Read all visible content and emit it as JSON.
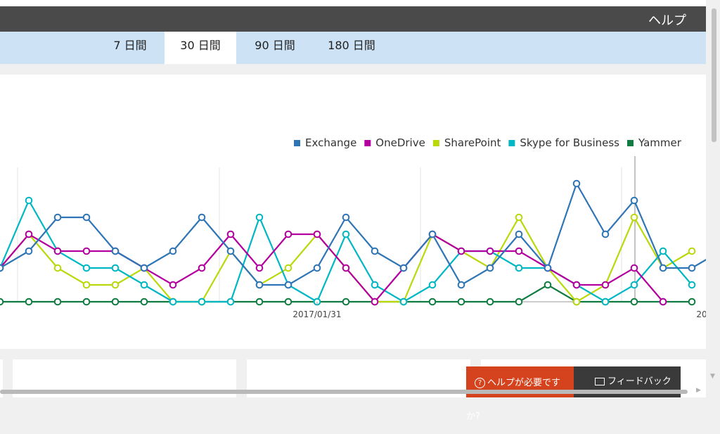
{
  "header": {
    "help_label": "ヘルプ"
  },
  "tabs": [
    {
      "label": "7 日間",
      "active": false
    },
    {
      "label": "30 日間",
      "active": true
    },
    {
      "label": "90 日間",
      "active": false
    },
    {
      "label": "180 日間",
      "active": false
    }
  ],
  "chart_data": {
    "type": "line",
    "x": [
      "2017/01/18",
      "2017/01/19",
      "2017/01/20",
      "2017/01/21",
      "2017/01/22",
      "2017/01/23",
      "2017/01/24",
      "2017/01/25",
      "2017/01/26",
      "2017/01/27",
      "2017/01/28",
      "2017/01/29",
      "2017/01/30",
      "2017/01/31",
      "2017/02/01",
      "2017/02/02",
      "2017/02/03",
      "2017/02/04",
      "2017/02/05",
      "2017/02/06",
      "2017/02/07",
      "2017/02/08",
      "2017/02/09",
      "2017/02/10",
      "2017/02/11",
      "2017/02/12",
      "2017/02/13",
      "2017/02/14",
      "2017/02/15",
      "2017/02/16",
      "2017/02/17",
      "2017/02/18",
      "2017/02/19"
    ],
    "x_tick_labels": [
      "2017/01/31",
      "2017/02/14"
    ],
    "ylim": [
      0,
      8
    ],
    "legend_position": "top-right",
    "series": [
      {
        "name": "Exchange",
        "color": "#2e75b6",
        "values": [
          0,
          1,
          2,
          3,
          5,
          5,
          3,
          2,
          3,
          5,
          3,
          1,
          1,
          2,
          5,
          3,
          2,
          4,
          1,
          2,
          4,
          2,
          7,
          4,
          6,
          2,
          2,
          3,
          3,
          null,
          null,
          null,
          null
        ]
      },
      {
        "name": "OneDrive",
        "color": "#b4009e",
        "values": [
          0,
          1,
          2,
          4,
          3,
          3,
          3,
          2,
          1,
          2,
          4,
          2,
          4,
          4,
          2,
          0,
          2,
          4,
          3,
          3,
          3,
          2,
          1,
          1,
          2,
          0,
          null,
          null,
          null,
          null,
          null,
          null,
          null
        ]
      },
      {
        "name": "SharePoint",
        "color": "#bad80a",
        "values": [
          0,
          1,
          2,
          4,
          2,
          1,
          1,
          2,
          0,
          0,
          3,
          1,
          2,
          4,
          2,
          0,
          0,
          4,
          3,
          2,
          5,
          2,
          0,
          1,
          5,
          2,
          3,
          null,
          null,
          null,
          null,
          null,
          null
        ]
      },
      {
        "name": "Skype for Business",
        "color": "#00b7c3",
        "values": [
          0,
          1,
          2,
          6,
          3,
          2,
          2,
          1,
          0,
          0,
          0,
          5,
          1,
          0,
          4,
          1,
          0,
          1,
          3,
          3,
          2,
          2,
          1,
          0,
          1,
          3,
          1,
          null,
          null,
          null,
          null,
          null,
          null
        ]
      },
      {
        "name": "Yammer",
        "color": "#107c41",
        "values": [
          0,
          0,
          0,
          0,
          0,
          0,
          0,
          0,
          0,
          0,
          0,
          0,
          0,
          0,
          0,
          0,
          0,
          0,
          0,
          0,
          0,
          1,
          0,
          0,
          0,
          0,
          0,
          null,
          null,
          null,
          null,
          null,
          null
        ]
      }
    ]
  },
  "bottom": {
    "help_prompt": "ヘルプが必要ですか?",
    "feedback_label": "フィードバック"
  }
}
